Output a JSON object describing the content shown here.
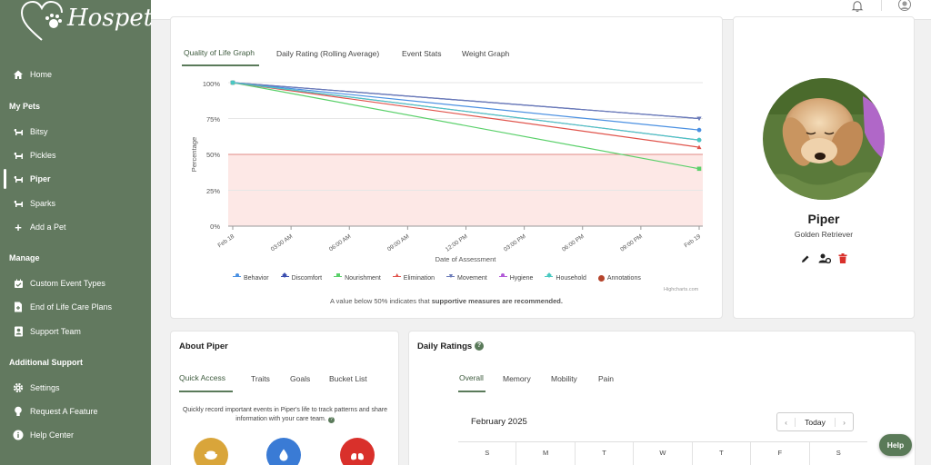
{
  "app": {
    "name": "Hospet"
  },
  "sidebar": {
    "home": "Home",
    "section_pets": "My Pets",
    "pets": [
      "Bitsy",
      "Pickles",
      "Piper",
      "Sparks"
    ],
    "add_pet": "Add a Pet",
    "section_manage": "Manage",
    "manage": [
      "Custom Event Types",
      "End of Life Care Plans",
      "Support Team"
    ],
    "section_support": "Additional Support",
    "support": [
      "Settings",
      "Request A Feature",
      "Help Center"
    ]
  },
  "chart_tabs": [
    "Quality of Life Graph",
    "Daily Rating (Rolling Average)",
    "Event Stats",
    "Weight Graph"
  ],
  "chart_data": {
    "type": "line",
    "ylabel": "Percentage",
    "xlabel": "Date of Assessment",
    "ylim": [
      0,
      100
    ],
    "y_ticks": [
      "100%",
      "75%",
      "50%",
      "25%",
      "0%"
    ],
    "x_ticks": [
      "Feb 18",
      "03:00 AM",
      "06:00 AM",
      "09:00 AM",
      "12:00 PM",
      "03:00 PM",
      "06:00 PM",
      "09:00 PM",
      "Feb 19"
    ],
    "threshold": 50,
    "series": [
      {
        "name": "Behavior",
        "color": "#4a90e2",
        "values": [
          100,
          67
        ]
      },
      {
        "name": "Discomfort",
        "color": "#3b4fb0",
        "values": [
          100,
          75
        ]
      },
      {
        "name": "Nourishment",
        "color": "#5ad06a",
        "values": [
          100,
          40
        ]
      },
      {
        "name": "Elimination",
        "color": "#e0524a",
        "values": [
          100,
          55
        ]
      },
      {
        "name": "Movement",
        "color": "#6a7ab8",
        "values": [
          100,
          75
        ]
      },
      {
        "name": "Hygiene",
        "color": "#b25ad8",
        "values": [
          100,
          60
        ]
      },
      {
        "name": "Household",
        "color": "#49c9c1",
        "values": [
          100,
          60
        ]
      },
      {
        "name": "Annotations",
        "color": "#b5442c",
        "values": []
      }
    ]
  },
  "chart_note_prefix": "A value below 50% indicates that",
  "chart_note_bold": "supportive measures are recommended.",
  "chart_credit": "Highcharts.com",
  "pet": {
    "name": "Piper",
    "breed": "Golden Retriever"
  },
  "about": {
    "title": "About Piper",
    "tabs": [
      "Quick Access",
      "Traits",
      "Goals",
      "Bucket List"
    ],
    "text": "Quickly record important events in Piper's life to track patterns and share information with your care team."
  },
  "daily": {
    "title": "Daily Ratings",
    "tabs": [
      "Overall",
      "Memory",
      "Mobility",
      "Pain"
    ],
    "month": "February 2025",
    "today": "Today",
    "weekdays": [
      "S",
      "M",
      "T",
      "W",
      "T",
      "F",
      "S"
    ]
  },
  "help_label": "Help",
  "colors": {
    "sidebar": "#62795f",
    "accent": "#5a7a5a",
    "danger": "#d9302b"
  }
}
